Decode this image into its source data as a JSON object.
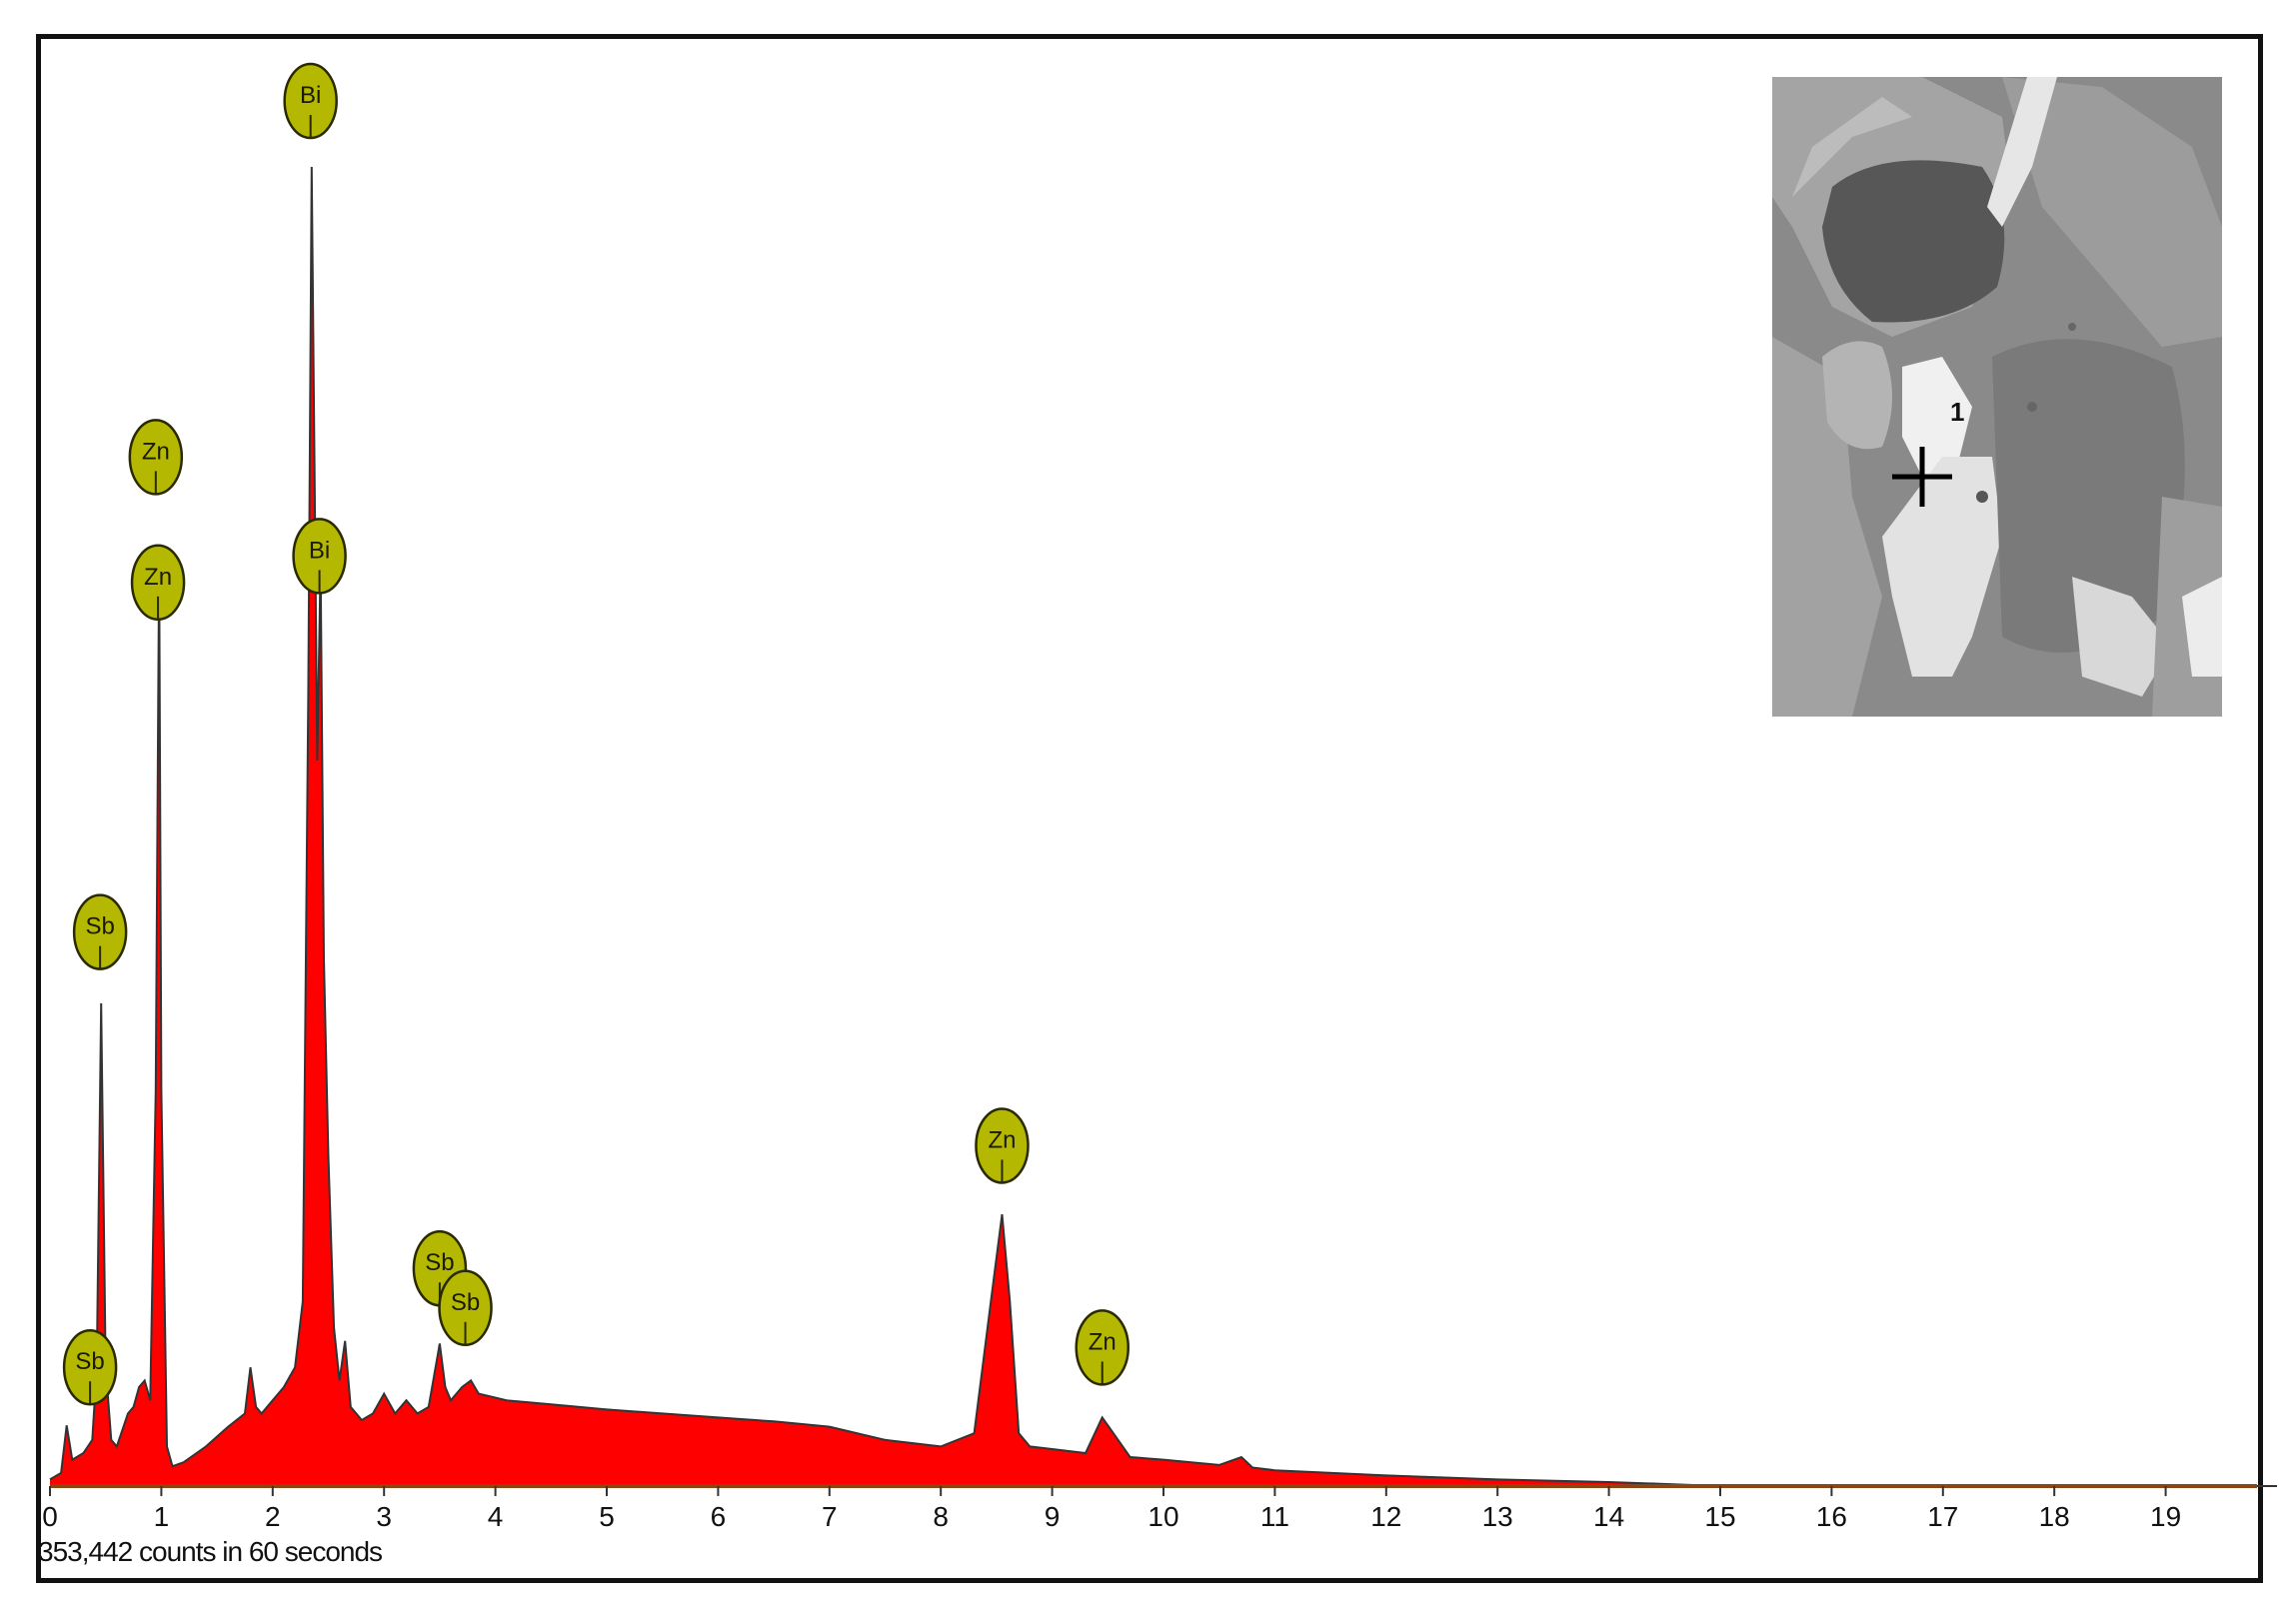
{
  "footer": {
    "counts_text": "353,442 counts in 60 seconds"
  },
  "colors": {
    "fill": "#ff0000",
    "outline": "#333333",
    "marker_fill": "#b5b800",
    "marker_stroke": "#2a2a00",
    "axis": "#8b4513"
  },
  "inset": {
    "cursor_label": "1"
  },
  "chart_data": {
    "type": "area",
    "title": "",
    "xlabel": "",
    "ylabel": "",
    "xlim": [
      0,
      20
    ],
    "ylim": [
      0,
      100
    ],
    "x_ticks": [
      "0",
      "1",
      "2",
      "3",
      "4",
      "5",
      "6",
      "7",
      "8",
      "9",
      "10",
      "11",
      "12",
      "13",
      "14",
      "15",
      "16",
      "17",
      "18",
      "19"
    ],
    "series": [
      {
        "x": [
          0.0,
          0.1,
          0.15,
          0.2,
          0.3,
          0.38,
          0.42,
          0.46,
          0.5,
          0.55,
          0.6,
          0.7,
          0.75,
          0.8,
          0.85,
          0.9,
          0.95,
          0.98,
          1.0,
          1.05,
          1.1,
          1.2,
          1.4,
          1.6,
          1.75,
          1.8,
          1.85,
          1.9,
          2.0,
          2.1,
          2.2,
          2.27,
          2.32,
          2.35,
          2.4,
          2.43,
          2.46,
          2.5,
          2.55,
          2.6,
          2.65,
          2.7,
          2.8,
          2.9,
          3.0,
          3.1,
          3.2,
          3.3,
          3.4,
          3.5,
          3.55,
          3.6,
          3.7,
          3.78,
          3.85,
          3.95,
          4.1,
          4.5,
          5.0,
          5.5,
          6.0,
          6.5,
          7.0,
          7.5,
          8.0,
          8.3,
          8.45,
          8.55,
          8.62,
          8.7,
          8.8,
          9.0,
          9.3,
          9.45,
          9.55,
          9.7,
          10.0,
          10.5,
          10.7,
          10.8,
          11.0,
          12.0,
          13.0,
          14.0,
          14.7,
          15.0,
          20.0
        ],
        "y": [
          0.5,
          1.0,
          4.6,
          2.0,
          2.5,
          3.5,
          9.0,
          36.6,
          9.0,
          3.5,
          3.0,
          5.5,
          6.0,
          7.5,
          8.0,
          6.5,
          30.0,
          70.3,
          30.0,
          3.0,
          1.5,
          1.8,
          3.0,
          4.5,
          5.5,
          9.0,
          6.0,
          5.5,
          6.5,
          7.5,
          9.0,
          14.0,
          60.0,
          100.0,
          55.0,
          70.0,
          40.0,
          25.0,
          12.0,
          8.0,
          11.0,
          6.0,
          5.0,
          5.5,
          7.0,
          5.5,
          6.5,
          5.5,
          6.0,
          10.8,
          7.5,
          6.5,
          7.5,
          8.0,
          7.0,
          6.8,
          6.5,
          6.2,
          5.8,
          5.5,
          5.2,
          4.9,
          4.5,
          3.5,
          3.0,
          4.0,
          14.0,
          20.6,
          14.0,
          4.0,
          3.0,
          2.8,
          2.5,
          5.2,
          4.0,
          2.2,
          2.0,
          1.6,
          2.2,
          1.4,
          1.2,
          0.8,
          0.5,
          0.3,
          0.1,
          0.0,
          0.0
        ]
      }
    ],
    "peak_labels": [
      {
        "element": "Bi",
        "x": 2.34,
        "y": 100.0,
        "badge_y": 105.0
      },
      {
        "element": "Bi",
        "x": 2.42,
        "y": 70.0,
        "badge_y": 70.5
      },
      {
        "element": "Zn",
        "x": 0.95,
        "y": 73.0,
        "badge_y": 78.0
      },
      {
        "element": "Zn",
        "x": 0.97,
        "y": 67.0,
        "badge_y": 68.5
      },
      {
        "element": "Sb",
        "x": 0.45,
        "y": 36.6,
        "badge_y": 42.0
      },
      {
        "element": "Sb",
        "x": 0.36,
        "y": 5.0,
        "badge_y": 9.0
      },
      {
        "element": "Sb",
        "x": 3.5,
        "y": 10.8,
        "badge_y": 16.5
      },
      {
        "element": "Sb",
        "x": 3.73,
        "y": 8.2,
        "badge_y": 13.5
      },
      {
        "element": "Zn",
        "x": 8.55,
        "y": 20.6,
        "badge_y": 25.8
      },
      {
        "element": "Zn",
        "x": 9.45,
        "y": 5.2,
        "badge_y": 10.5
      }
    ]
  }
}
